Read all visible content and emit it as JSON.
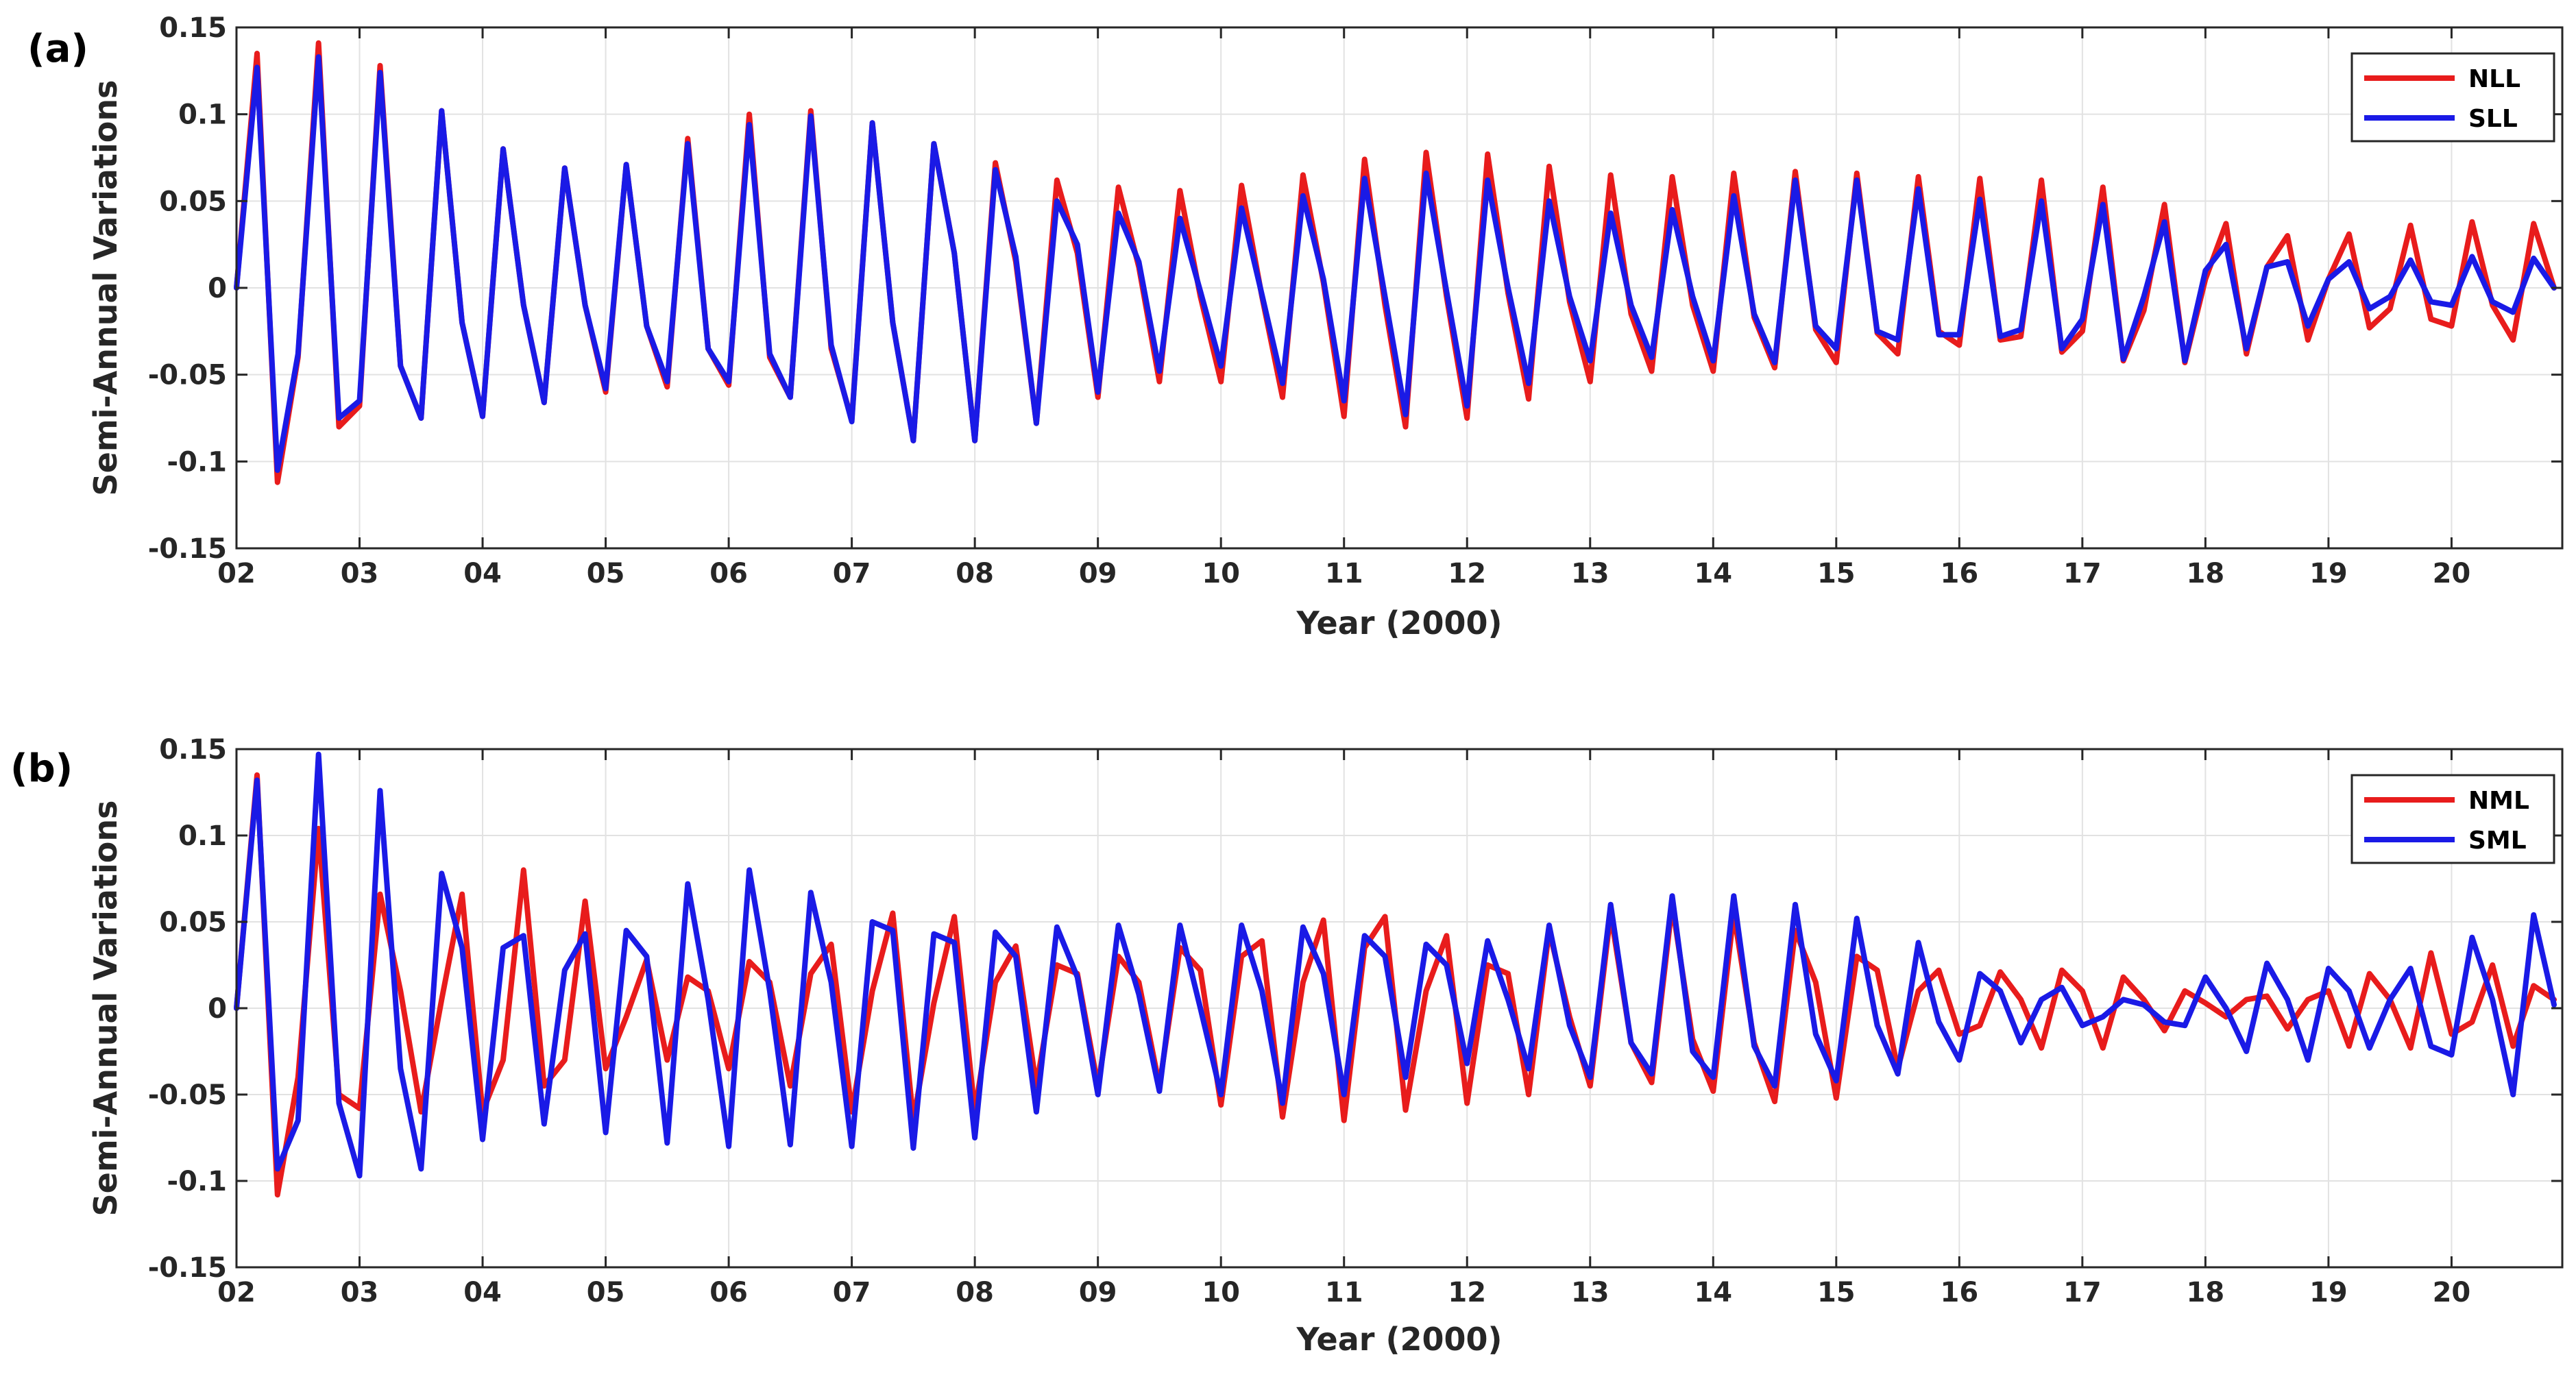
{
  "chart_data": [
    {
      "type": "line",
      "panel_label": "(a)",
      "xlabel": "Year (2000)",
      "ylabel": "Semi-Annual Variations",
      "xlim": [
        2,
        20.9
      ],
      "ylim": [
        -0.15,
        0.15
      ],
      "x_tick_values": [
        2,
        3,
        4,
        5,
        6,
        7,
        8,
        9,
        10,
        11,
        12,
        13,
        14,
        15,
        16,
        17,
        18,
        19,
        20
      ],
      "x_tick_labels": [
        "02",
        "03",
        "04",
        "05",
        "06",
        "07",
        "08",
        "09",
        "10",
        "11",
        "12",
        "13",
        "14",
        "15",
        "16",
        "17",
        "18",
        "19",
        "20"
      ],
      "y_tick_values": [
        0.15,
        0.1,
        0.05,
        0,
        -0.05,
        -0.1,
        -0.15
      ],
      "y_tick_labels": [
        "0.15",
        "0.1",
        "0.05",
        "0",
        "-0.05",
        "-0.1",
        "-0.15"
      ],
      "grid": true,
      "legend_position": "top-right",
      "x": [
        2.0,
        2.167,
        2.333,
        2.5,
        2.667,
        2.833,
        3.0,
        3.167,
        3.333,
        3.5,
        3.667,
        3.833,
        4.0,
        4.167,
        4.333,
        4.5,
        4.667,
        4.833,
        5.0,
        5.167,
        5.333,
        5.5,
        5.667,
        5.833,
        6.0,
        6.167,
        6.333,
        6.5,
        6.667,
        6.833,
        7.0,
        7.167,
        7.333,
        7.5,
        7.667,
        7.833,
        8.0,
        8.167,
        8.333,
        8.5,
        8.667,
        8.833,
        9.0,
        9.167,
        9.333,
        9.5,
        9.667,
        9.833,
        10.0,
        10.167,
        10.333,
        10.5,
        10.667,
        10.833,
        11.0,
        11.167,
        11.333,
        11.5,
        11.667,
        11.833,
        12.0,
        12.167,
        12.333,
        12.5,
        12.667,
        12.833,
        13.0,
        13.167,
        13.333,
        13.5,
        13.667,
        13.833,
        14.0,
        14.167,
        14.333,
        14.5,
        14.667,
        14.833,
        15.0,
        15.167,
        15.333,
        15.5,
        15.667,
        15.833,
        16.0,
        16.167,
        16.333,
        16.5,
        16.667,
        16.833,
        17.0,
        17.167,
        17.333,
        17.5,
        17.667,
        17.833,
        18.0,
        18.167,
        18.333,
        18.5,
        18.667,
        18.833,
        19.0,
        19.167,
        19.333,
        19.5,
        19.667,
        19.833,
        20.0,
        20.167,
        20.333,
        20.5,
        20.667,
        20.833
      ],
      "series": [
        {
          "name": "NLL",
          "color": "#e81c1c",
          "values": [
            0.0,
            0.135,
            -0.112,
            -0.04,
            0.141,
            -0.08,
            -0.068,
            0.128,
            -0.045,
            -0.075,
            0.102,
            -0.02,
            -0.074,
            0.08,
            -0.01,
            -0.066,
            0.069,
            -0.01,
            -0.06,
            0.071,
            -0.022,
            -0.057,
            0.086,
            -0.035,
            -0.056,
            0.1,
            -0.04,
            -0.063,
            0.102,
            -0.035,
            -0.076,
            0.095,
            -0.02,
            -0.088,
            0.083,
            0.02,
            -0.088,
            0.072,
            0.015,
            -0.078,
            0.062,
            0.02,
            -0.063,
            0.058,
            0.012,
            -0.054,
            0.056,
            -0.005,
            -0.054,
            0.059,
            -0.005,
            -0.063,
            0.065,
            0.003,
            -0.074,
            0.074,
            -0.01,
            -0.08,
            0.078,
            -0.005,
            -0.075,
            0.077,
            -0.003,
            -0.064,
            0.07,
            -0.008,
            -0.054,
            0.065,
            -0.015,
            -0.048,
            0.064,
            -0.01,
            -0.048,
            0.066,
            -0.017,
            -0.046,
            0.067,
            -0.024,
            -0.043,
            0.066,
            -0.026,
            -0.038,
            0.064,
            -0.025,
            -0.033,
            0.063,
            -0.03,
            -0.028,
            0.062,
            -0.037,
            -0.025,
            0.058,
            -0.042,
            -0.013,
            0.048,
            -0.043,
            0.005,
            0.037,
            -0.038,
            0.012,
            0.03,
            -0.03,
            0.005,
            0.031,
            -0.023,
            -0.012,
            0.036,
            -0.018,
            -0.022,
            0.038,
            -0.01,
            -0.03,
            0.037,
            0.0
          ]
        },
        {
          "name": "SLL",
          "color": "#1a1ae6",
          "values": [
            0.0,
            0.127,
            -0.105,
            -0.038,
            0.133,
            -0.075,
            -0.065,
            0.124,
            -0.045,
            -0.075,
            0.102,
            -0.02,
            -0.074,
            0.08,
            -0.01,
            -0.066,
            0.069,
            -0.01,
            -0.058,
            0.071,
            -0.022,
            -0.054,
            0.083,
            -0.035,
            -0.054,
            0.094,
            -0.038,
            -0.063,
            0.099,
            -0.033,
            -0.077,
            0.095,
            -0.02,
            -0.088,
            0.083,
            0.02,
            -0.088,
            0.068,
            0.018,
            -0.078,
            0.05,
            0.025,
            -0.06,
            0.043,
            0.015,
            -0.048,
            0.04,
            -0.002,
            -0.045,
            0.046,
            -0.004,
            -0.055,
            0.053,
            0.005,
            -0.065,
            0.063,
            -0.005,
            -0.073,
            0.066,
            -0.002,
            -0.068,
            0.062,
            0.0,
            -0.055,
            0.05,
            -0.005,
            -0.042,
            0.043,
            -0.01,
            -0.04,
            0.045,
            -0.005,
            -0.042,
            0.053,
            -0.015,
            -0.043,
            0.062,
            -0.022,
            -0.035,
            0.062,
            -0.025,
            -0.03,
            0.057,
            -0.027,
            -0.027,
            0.051,
            -0.028,
            -0.024,
            0.05,
            -0.035,
            -0.018,
            0.048,
            -0.041,
            -0.005,
            0.038,
            -0.042,
            0.01,
            0.025,
            -0.035,
            0.012,
            0.015,
            -0.022,
            0.005,
            0.015,
            -0.012,
            -0.005,
            0.016,
            -0.008,
            -0.01,
            0.018,
            -0.008,
            -0.014,
            0.017,
            0.0
          ]
        }
      ]
    },
    {
      "type": "line",
      "panel_label": "(b)",
      "xlabel": "Year (2000)",
      "ylabel": "Semi-Annual Variations",
      "xlim": [
        2,
        20.9
      ],
      "ylim": [
        -0.15,
        0.15
      ],
      "x_tick_values": [
        2,
        3,
        4,
        5,
        6,
        7,
        8,
        9,
        10,
        11,
        12,
        13,
        14,
        15,
        16,
        17,
        18,
        19,
        20
      ],
      "x_tick_labels": [
        "02",
        "03",
        "04",
        "05",
        "06",
        "07",
        "08",
        "09",
        "10",
        "11",
        "12",
        "13",
        "14",
        "15",
        "16",
        "17",
        "18",
        "19",
        "20"
      ],
      "y_tick_values": [
        0.15,
        0.1,
        0.05,
        0,
        -0.05,
        -0.1,
        -0.15
      ],
      "y_tick_labels": [
        "0.15",
        "0.1",
        "0.05",
        "0",
        "-0.05",
        "-0.1",
        "-0.15"
      ],
      "grid": true,
      "legend_position": "top-right",
      "x": [
        2.0,
        2.167,
        2.333,
        2.5,
        2.667,
        2.833,
        3.0,
        3.167,
        3.333,
        3.5,
        3.667,
        3.833,
        4.0,
        4.167,
        4.333,
        4.5,
        4.667,
        4.833,
        5.0,
        5.167,
        5.333,
        5.5,
        5.667,
        5.833,
        6.0,
        6.167,
        6.333,
        6.5,
        6.667,
        6.833,
        7.0,
        7.167,
        7.333,
        7.5,
        7.667,
        7.833,
        8.0,
        8.167,
        8.333,
        8.5,
        8.667,
        8.833,
        9.0,
        9.167,
        9.333,
        9.5,
        9.667,
        9.833,
        10.0,
        10.167,
        10.333,
        10.5,
        10.667,
        10.833,
        11.0,
        11.167,
        11.333,
        11.5,
        11.667,
        11.833,
        12.0,
        12.167,
        12.333,
        12.5,
        12.667,
        12.833,
        13.0,
        13.167,
        13.333,
        13.5,
        13.667,
        13.833,
        14.0,
        14.167,
        14.333,
        14.5,
        14.667,
        14.833,
        15.0,
        15.167,
        15.333,
        15.5,
        15.667,
        15.833,
        16.0,
        16.167,
        16.333,
        16.5,
        16.667,
        16.833,
        17.0,
        17.167,
        17.333,
        17.5,
        17.667,
        17.833,
        18.0,
        18.167,
        18.333,
        18.5,
        18.667,
        18.833,
        19.0,
        19.167,
        19.333,
        19.5,
        19.667,
        19.833,
        20.0,
        20.167,
        20.333,
        20.5,
        20.667,
        20.833
      ],
      "series": [
        {
          "name": "NML",
          "color": "#e81c1c",
          "values": [
            0.0,
            0.135,
            -0.108,
            -0.04,
            0.104,
            -0.05,
            -0.058,
            0.066,
            0.01,
            -0.06,
            0.005,
            0.066,
            -0.06,
            -0.03,
            0.08,
            -0.045,
            -0.03,
            0.062,
            -0.035,
            -0.005,
            0.028,
            -0.03,
            0.018,
            0.01,
            -0.035,
            0.027,
            0.015,
            -0.045,
            0.02,
            0.037,
            -0.06,
            0.01,
            0.055,
            -0.065,
            0.003,
            0.053,
            -0.06,
            0.015,
            0.036,
            -0.045,
            0.025,
            0.02,
            -0.045,
            0.03,
            0.015,
            -0.045,
            0.035,
            0.022,
            -0.056,
            0.03,
            0.039,
            -0.063,
            0.015,
            0.051,
            -0.065,
            0.035,
            0.053,
            -0.059,
            0.01,
            0.042,
            -0.055,
            0.025,
            0.02,
            -0.05,
            0.045,
            -0.005,
            -0.045,
            0.055,
            -0.02,
            -0.043,
            0.06,
            -0.018,
            -0.048,
            0.055,
            -0.02,
            -0.054,
            0.045,
            0.015,
            -0.052,
            0.03,
            0.022,
            -0.035,
            0.01,
            0.022,
            -0.015,
            -0.01,
            0.021,
            0.005,
            -0.023,
            0.022,
            0.01,
            -0.023,
            0.018,
            0.005,
            -0.013,
            0.01,
            0.003,
            -0.005,
            0.005,
            0.007,
            -0.012,
            0.005,
            0.01,
            -0.022,
            0.02,
            0.005,
            -0.023,
            0.032,
            -0.015,
            -0.008,
            0.025,
            -0.022,
            0.013,
            0.005
          ]
        },
        {
          "name": "SML",
          "color": "#1a1ae6",
          "values": [
            0.0,
            0.132,
            -0.093,
            -0.065,
            0.147,
            -0.055,
            -0.097,
            0.126,
            -0.035,
            -0.093,
            0.078,
            0.035,
            -0.076,
            0.035,
            0.042,
            -0.067,
            0.022,
            0.043,
            -0.072,
            0.045,
            0.03,
            -0.078,
            0.072,
            0.005,
            -0.08,
            0.08,
            0.01,
            -0.079,
            0.067,
            0.015,
            -0.08,
            0.05,
            0.045,
            -0.081,
            0.043,
            0.038,
            -0.075,
            0.044,
            0.03,
            -0.06,
            0.047,
            0.018,
            -0.05,
            0.048,
            0.008,
            -0.048,
            0.048,
            0.0,
            -0.05,
            0.048,
            0.01,
            -0.055,
            0.047,
            0.02,
            -0.05,
            0.042,
            0.03,
            -0.04,
            0.037,
            0.025,
            -0.032,
            0.039,
            0.005,
            -0.035,
            0.048,
            -0.01,
            -0.04,
            0.06,
            -0.02,
            -0.038,
            0.065,
            -0.025,
            -0.04,
            0.065,
            -0.022,
            -0.045,
            0.06,
            -0.015,
            -0.042,
            0.052,
            -0.01,
            -0.038,
            0.038,
            -0.008,
            -0.03,
            0.02,
            0.01,
            -0.02,
            0.005,
            0.012,
            -0.01,
            -0.005,
            0.005,
            0.002,
            -0.008,
            -0.01,
            0.018,
            0.0,
            -0.025,
            0.026,
            0.005,
            -0.03,
            0.023,
            0.01,
            -0.023,
            0.005,
            0.023,
            -0.022,
            -0.027,
            0.041,
            0.005,
            -0.05,
            0.054,
            0.002
          ]
        }
      ]
    }
  ]
}
